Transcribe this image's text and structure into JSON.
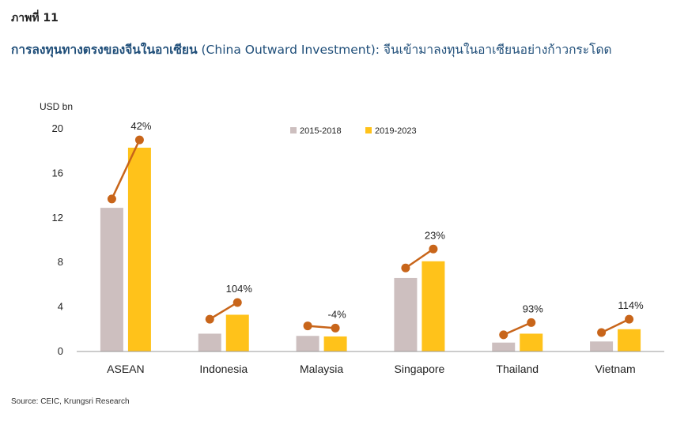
{
  "figure_label": "ภาพที่ 11",
  "title_bold": "การลงทุนทางตรงของจีนในอาเซียน",
  "title_rest": " (China Outward Investment): จีนเข้ามาลงทุนในอาเซียนอย่างก้าวกระโดด",
  "source": "Source: CEIC, Krungsri Research",
  "colors": {
    "series1": "#cdbfbf",
    "series2": "#ffc21a",
    "line": "#c8651a",
    "title": "#1f4e79"
  },
  "chart_data": {
    "type": "bar",
    "ylabel": "USD bn",
    "ylim": [
      0,
      20
    ],
    "yticks": [
      0,
      4,
      8,
      12,
      16,
      20
    ],
    "categories": [
      "ASEAN",
      "Indonesia",
      "Malaysia",
      "Singapore",
      "Thailand",
      "Vietnam"
    ],
    "series": [
      {
        "name": "2015-2018",
        "values": [
          12.9,
          1.6,
          1.4,
          6.6,
          0.8,
          0.9
        ]
      },
      {
        "name": "2019-2023",
        "values": [
          18.3,
          3.3,
          1.35,
          8.1,
          1.6,
          2.0
        ]
      }
    ],
    "growth_line": {
      "start": [
        13.7,
        2.9,
        2.3,
        7.5,
        1.5,
        1.7
      ],
      "end": [
        19.0,
        4.4,
        2.1,
        9.2,
        2.6,
        2.9
      ]
    },
    "growth_labels": [
      "42%",
      "104%",
      "-4%",
      "23%",
      "93%",
      "114%"
    ],
    "legend_position": "top-center",
    "grid": false
  }
}
